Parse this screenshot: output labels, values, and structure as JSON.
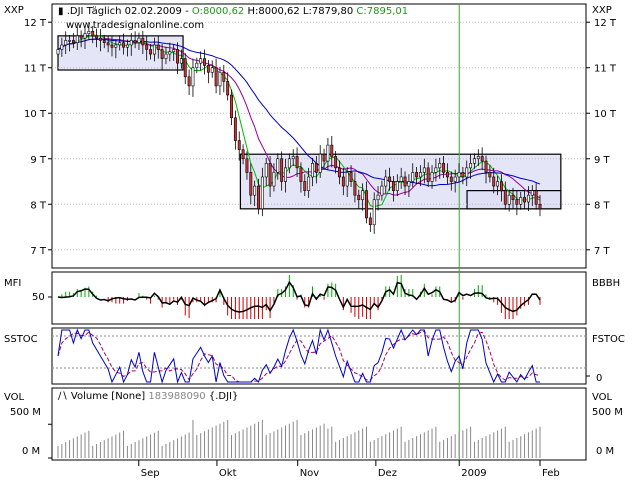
{
  "header": {
    "symbol": ".DJI Täglich",
    "date": "02.02.2009",
    "open": "O:8000,62",
    "high": "H:8000,62",
    "low": "L:7879,80",
    "close": "C:7895,01",
    "watermark": "www.tradesignalonline.com"
  },
  "axes": {
    "price_left_title": "XXP",
    "price_right_title": "XXP",
    "price_ticks": [
      "12 T",
      "11 T",
      "10 T",
      "9 T",
      "8 T",
      "7 T"
    ],
    "mfi_left_title": "MFI",
    "mfi_right_title": "BBBH",
    "mfi_tick": "50",
    "stoc_left_title": "SSTOC",
    "stoc_right_title": "FSTOC",
    "stoc_tick": "0",
    "vol_left_title": "VOL",
    "vol_right_title": "VOL",
    "vol_ticks": [
      "500 M",
      "0 M"
    ],
    "vol_legend": "Volume [None]",
    "vol_legend_value": "183988090",
    "vol_legend_symbol": "{.DJI}",
    "months": [
      "Sep",
      "Okt",
      "Nov",
      "Dez",
      "2009",
      "Feb"
    ]
  },
  "colors": {
    "up": "#ffffff",
    "down": "#cc3333",
    "green_ma": "#00bb00",
    "purple_ma": "#990099",
    "blue_ma": "#0000cc",
    "box_fill": "#dcdcf5",
    "mfi_pos": "#00aa00",
    "mfi_neg": "#cc0000",
    "stoc_fast": "#0000cc",
    "stoc_slow": "#aa0066",
    "vline": "#33aa33"
  },
  "chart_data": {
    "type": "candlestick",
    "price": {
      "ylim": [
        6.6,
        12.4
      ],
      "unit": "T",
      "start_date": "2008-08-01",
      "end_date": "2009-02-02",
      "closes": [
        11.4,
        11.5,
        11.6,
        11.6,
        11.55,
        11.7,
        11.65,
        11.75,
        11.8,
        11.7,
        11.65,
        11.6,
        11.55,
        11.5,
        11.45,
        11.5,
        11.55,
        11.45,
        11.5,
        11.6,
        11.55,
        11.65,
        11.5,
        11.4,
        11.3,
        11.5,
        11.4,
        11.2,
        11.3,
        11.35,
        11.4,
        11.1,
        11.2,
        10.8,
        10.6,
        11.0,
        11.1,
        11.2,
        11.05,
        10.9,
        11.0,
        10.6,
        10.9,
        10.7,
        10.4,
        9.9,
        9.4,
        9.2,
        9.0,
        8.7,
        8.2,
        8.4,
        7.9,
        8.6,
        8.9,
        8.4,
        8.7,
        9.0,
        8.5,
        8.8,
        9.0,
        9.05,
        8.8,
        8.5,
        8.3,
        8.6,
        8.9,
        8.7,
        9.1,
        8.95,
        9.3,
        9.05,
        8.8,
        8.6,
        8.4,
        8.7,
        8.5,
        8.2,
        8.1,
        8.3,
        7.7,
        7.55,
        8.1,
        8.2,
        8.4,
        8.6,
        8.5,
        8.3,
        8.5,
        8.6,
        8.4,
        8.5,
        8.7,
        8.6,
        8.7,
        8.8,
        8.5,
        8.7,
        8.8,
        8.9,
        8.7,
        8.6,
        8.5,
        8.6,
        8.7,
        8.6,
        8.8,
        8.9,
        9.0,
        9.05,
        8.95,
        8.7,
        8.6,
        8.4,
        8.5,
        8.3,
        8.0,
        8.2,
        8.1,
        8.0,
        8.15,
        8.05,
        8.2,
        8.3,
        8.0,
        7.9
      ]
    },
    "boxes": [
      {
        "x0": "2008-08-01",
        "x1": "2008-09-18",
        "y0": 10.95,
        "y1": 11.7
      },
      {
        "x0": "2008-10-10",
        "x1": "2009-02-10",
        "y0": 7.9,
        "y1": 9.1
      },
      {
        "x0": "2009-01-05",
        "x1": "2009-02-10",
        "y0": 7.9,
        "y1": 8.3
      }
    ],
    "vertical_line_date": "2009-01-02",
    "month_ticks": [
      {
        "label": "Sep",
        "date": "2008-09-01"
      },
      {
        "label": "Okt",
        "date": "2008-10-01"
      },
      {
        "label": "Nov",
        "date": "2008-11-01"
      },
      {
        "label": "Dez",
        "date": "2008-12-01"
      },
      {
        "label": "2009",
        "date": "2009-01-02"
      },
      {
        "label": "Feb",
        "date": "2009-02-02"
      }
    ],
    "mfi": {
      "mid": 50
    },
    "volume": {
      "ylim": [
        0,
        800
      ],
      "unit": "M",
      "last_value": 183988090
    }
  }
}
